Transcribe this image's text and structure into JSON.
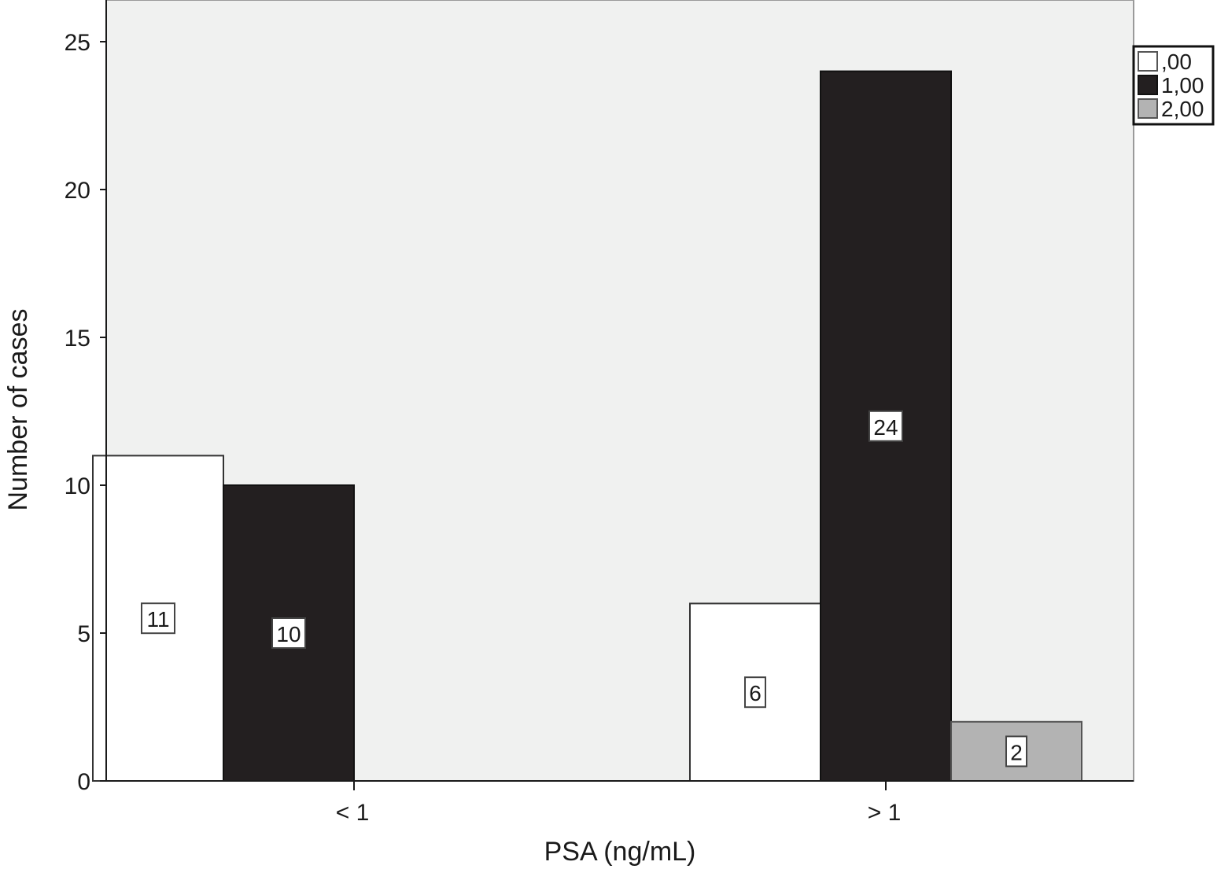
{
  "chart_data": {
    "type": "bar",
    "title": "",
    "xlabel": "PSA (ng/mL)",
    "ylabel": "Number of cases",
    "categories": [
      "< 1",
      "> 1"
    ],
    "series": [
      {
        "name": ",00",
        "values": [
          11,
          6
        ],
        "color": "#ffffff"
      },
      {
        "name": "1,00",
        "values": [
          10,
          24
        ],
        "color": "#231f20"
      },
      {
        "name": "2,00",
        "values": [
          null,
          2
        ],
        "color": "#b3b3b3"
      }
    ],
    "ylim": [
      0,
      26
    ],
    "yticks": [
      0,
      5,
      10,
      15,
      20,
      25
    ],
    "ytick_labels": [
      "0",
      "5",
      "10",
      "15",
      "20",
      "25"
    ],
    "grid": false,
    "legend_position": "top-right",
    "plot_background": "#f0f1f0"
  }
}
